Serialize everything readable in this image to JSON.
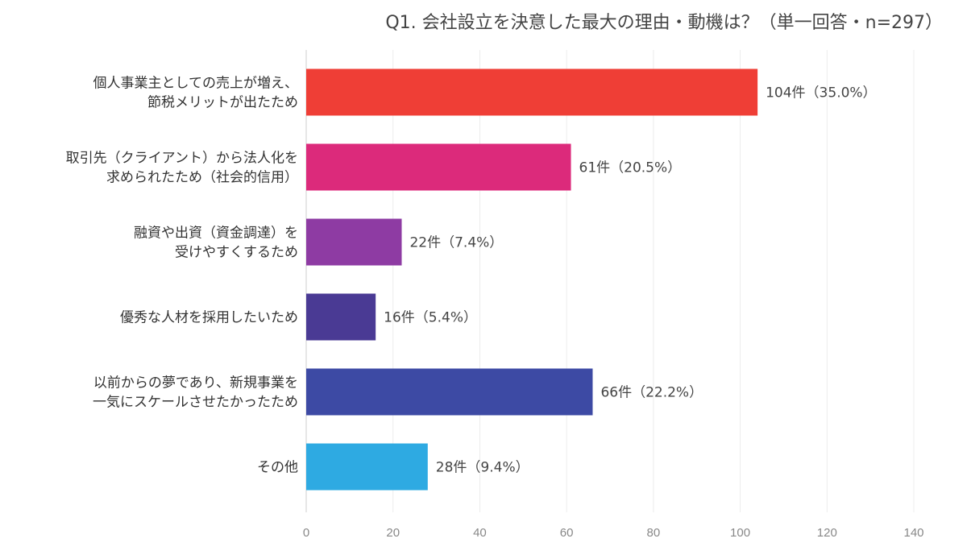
{
  "chart_data": {
    "type": "bar",
    "orientation": "horizontal",
    "title": "Q1. 会社設立を決意した最大の理由・動機は？（単一回答・n=297）",
    "categories": [
      [
        "個人事業主としての売上が増え、",
        "節税メリットが出たため"
      ],
      [
        "取引先（クライアント）から法人化を",
        "求められたため（社会的信用）"
      ],
      [
        "融資や出資（資金調達）を",
        "受けやすくするため"
      ],
      [
        "優秀な人材を採用したいため"
      ],
      [
        "以前からの夢であり、新規事業を",
        "一気にスケールさせたかったため"
      ],
      [
        "その他"
      ]
    ],
    "values": [
      104,
      61,
      22,
      16,
      66,
      28
    ],
    "value_labels": [
      "104件（35.0%）",
      "61件（20.5%）",
      "22件（7.4%）",
      "16件（5.4%）",
      "66件（22.2%）",
      "28件（9.4%）"
    ],
    "colors": [
      "#ef3e36",
      "#dc2a7b",
      "#8e3ba3",
      "#4a3a94",
      "#3d4aa4",
      "#2eaae2"
    ],
    "xlim": [
      0,
      140
    ],
    "xticks": [
      0,
      20,
      40,
      60,
      80,
      100,
      120,
      140
    ],
    "grid": true
  }
}
